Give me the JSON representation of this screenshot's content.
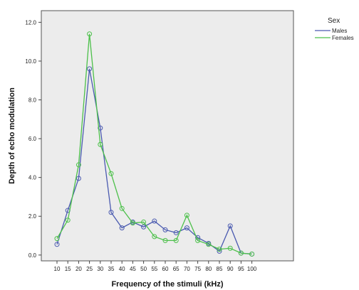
{
  "chart_data": {
    "type": "line",
    "xlabel": "Frequency of the stimuli (kHz)",
    "ylabel": "Depth of echo modulation",
    "x": [
      10,
      15,
      20,
      25,
      30,
      35,
      40,
      45,
      50,
      55,
      60,
      65,
      70,
      75,
      80,
      85,
      90,
      95,
      100
    ],
    "x_tick_labels": [
      "10",
      "15",
      "20",
      "25",
      "30",
      "35",
      "40",
      "45",
      "50",
      "55",
      "60",
      "65",
      "70",
      "75",
      "80",
      "85",
      "90",
      "95",
      "100"
    ],
    "y_tick_labels": [
      "0.0",
      "2.0",
      "4.0",
      "6.0",
      "8.0",
      "10.0",
      "12.0"
    ],
    "y_ticks": [
      0,
      2,
      4,
      6,
      8,
      10,
      12
    ],
    "ylim": [
      -0.3,
      12.6
    ],
    "grid": false,
    "legend": {
      "title": "Sex",
      "position": "right-outside-top"
    },
    "series": [
      {
        "name": "Males",
        "color": "#4a5ab0",
        "values": [
          0.55,
          2.3,
          3.95,
          9.6,
          6.55,
          2.2,
          1.4,
          1.7,
          1.45,
          1.75,
          1.3,
          1.15,
          1.4,
          0.9,
          0.6,
          0.2,
          1.5,
          0.1,
          0.05
        ]
      },
      {
        "name": "Females",
        "color": "#4cc04a",
        "values": [
          0.85,
          1.8,
          4.65,
          11.4,
          5.7,
          4.2,
          2.4,
          1.65,
          1.7,
          0.95,
          0.75,
          0.75,
          2.05,
          0.75,
          0.55,
          0.3,
          0.35,
          0.1,
          0.05
        ]
      }
    ]
  }
}
